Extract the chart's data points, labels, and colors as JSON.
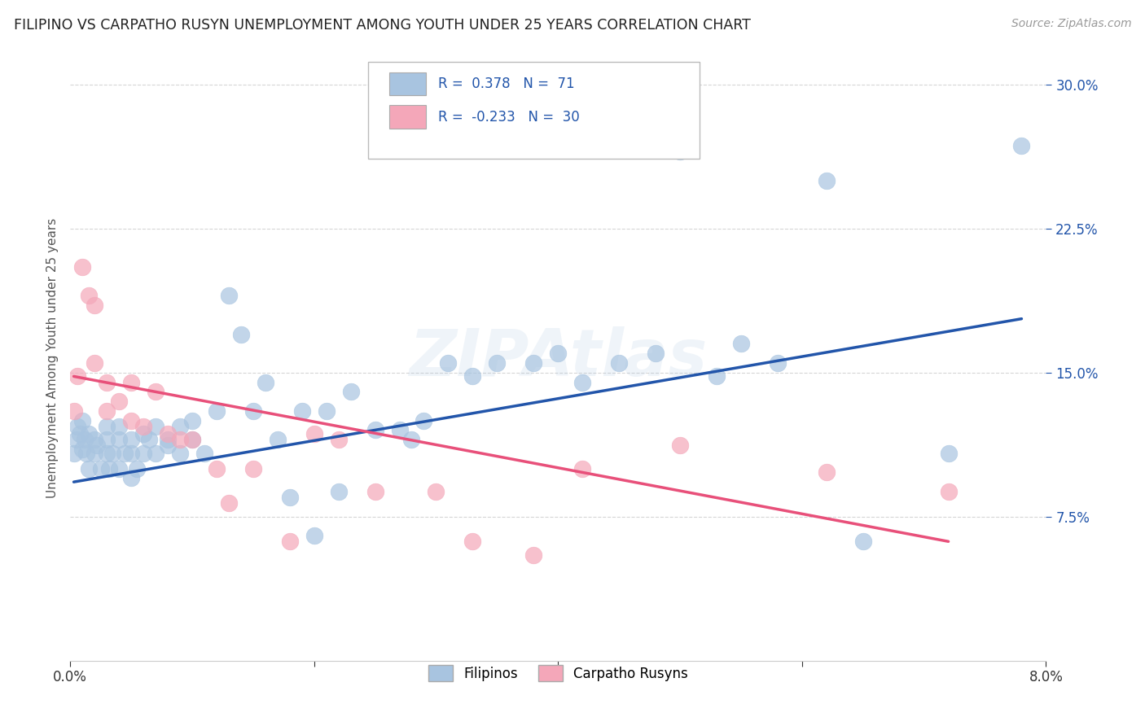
{
  "title": "FILIPINO VS CARPATHO RUSYN UNEMPLOYMENT AMONG YOUTH UNDER 25 YEARS CORRELATION CHART",
  "source": "Source: ZipAtlas.com",
  "ylabel": "Unemployment Among Youth under 25 years",
  "x_range": [
    0.0,
    0.08
  ],
  "y_range": [
    0.0,
    0.315
  ],
  "filipino_R": 0.378,
  "filipino_N": 71,
  "carpatho_R": -0.233,
  "carpatho_N": 30,
  "filipino_color": "#a8c4e0",
  "carpatho_color": "#f4a7b9",
  "filipino_line_color": "#2255aa",
  "carpatho_line_color": "#e8507a",
  "legend_text_color": "#2255aa",
  "background_color": "#ffffff",
  "grid_color": "#cccccc",
  "filipinos_x": [
    0.0003,
    0.0005,
    0.0006,
    0.0008,
    0.001,
    0.001,
    0.0012,
    0.0013,
    0.0015,
    0.0015,
    0.002,
    0.002,
    0.0022,
    0.0025,
    0.003,
    0.003,
    0.003,
    0.0032,
    0.0035,
    0.004,
    0.004,
    0.004,
    0.0045,
    0.005,
    0.005,
    0.005,
    0.0055,
    0.006,
    0.006,
    0.0065,
    0.007,
    0.007,
    0.008,
    0.008,
    0.009,
    0.009,
    0.01,
    0.01,
    0.011,
    0.012,
    0.013,
    0.014,
    0.015,
    0.016,
    0.017,
    0.018,
    0.019,
    0.02,
    0.021,
    0.022,
    0.023,
    0.025,
    0.027,
    0.028,
    0.029,
    0.031,
    0.033,
    0.035,
    0.038,
    0.04,
    0.042,
    0.045,
    0.048,
    0.05,
    0.053,
    0.055,
    0.058,
    0.062,
    0.065,
    0.072,
    0.078
  ],
  "filipinos_y": [
    0.108,
    0.115,
    0.122,
    0.118,
    0.11,
    0.125,
    0.115,
    0.108,
    0.1,
    0.118,
    0.115,
    0.108,
    0.112,
    0.1,
    0.108,
    0.115,
    0.122,
    0.1,
    0.108,
    0.115,
    0.1,
    0.122,
    0.108,
    0.095,
    0.108,
    0.115,
    0.1,
    0.108,
    0.118,
    0.115,
    0.108,
    0.122,
    0.112,
    0.115,
    0.108,
    0.122,
    0.115,
    0.125,
    0.108,
    0.13,
    0.19,
    0.17,
    0.13,
    0.145,
    0.115,
    0.085,
    0.13,
    0.065,
    0.13,
    0.088,
    0.14,
    0.12,
    0.12,
    0.115,
    0.125,
    0.155,
    0.148,
    0.155,
    0.155,
    0.16,
    0.145,
    0.155,
    0.16,
    0.265,
    0.148,
    0.165,
    0.155,
    0.25,
    0.062,
    0.108,
    0.268
  ],
  "carpatho_x": [
    0.0003,
    0.0006,
    0.001,
    0.0015,
    0.002,
    0.002,
    0.003,
    0.003,
    0.004,
    0.005,
    0.005,
    0.006,
    0.007,
    0.008,
    0.009,
    0.01,
    0.012,
    0.013,
    0.015,
    0.018,
    0.02,
    0.022,
    0.025,
    0.03,
    0.033,
    0.038,
    0.042,
    0.05,
    0.062,
    0.072
  ],
  "carpatho_y": [
    0.13,
    0.148,
    0.205,
    0.19,
    0.185,
    0.155,
    0.145,
    0.13,
    0.135,
    0.145,
    0.125,
    0.122,
    0.14,
    0.118,
    0.115,
    0.115,
    0.1,
    0.082,
    0.1,
    0.062,
    0.118,
    0.115,
    0.088,
    0.088,
    0.062,
    0.055,
    0.1,
    0.112,
    0.098,
    0.088
  ],
  "fil_line_x": [
    0.0003,
    0.078
  ],
  "fil_line_y": [
    0.093,
    0.178
  ],
  "car_line_x": [
    0.0003,
    0.072
  ],
  "car_line_y": [
    0.148,
    0.062
  ]
}
